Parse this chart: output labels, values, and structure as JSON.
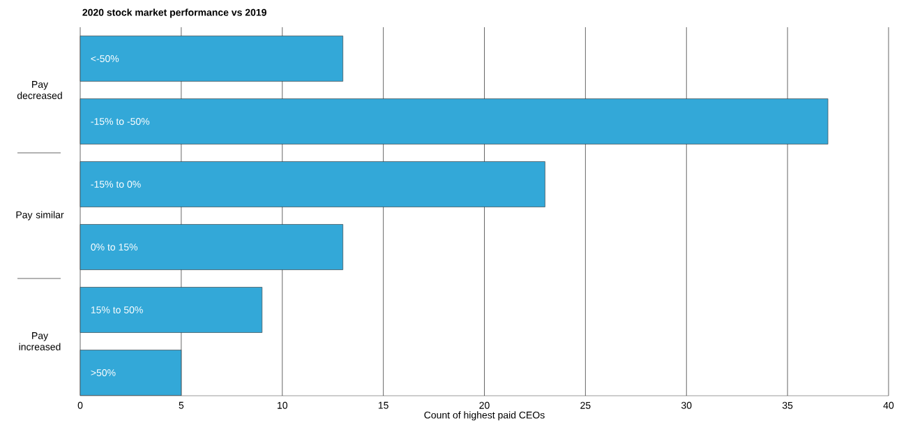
{
  "chart_data": {
    "type": "bar",
    "orientation": "horizontal",
    "title": "2020 stock market performance vs 2019",
    "xlabel": "Count of highest paid CEOs",
    "categories": [
      "<-50%",
      "-15% to -50%",
      "-15% to 0%",
      "0% to 15%",
      "15% to 50%",
      ">50%"
    ],
    "values": [
      13,
      37,
      23,
      13,
      9,
      5
    ],
    "color": "#33a8d8",
    "xlim": [
      0,
      40
    ],
    "xticks": [
      0,
      5,
      10,
      15,
      20,
      25,
      30,
      35,
      40
    ],
    "grid": "x",
    "annotations": [
      "Pay decreased",
      "Pay similar",
      "Pay increased"
    ]
  }
}
